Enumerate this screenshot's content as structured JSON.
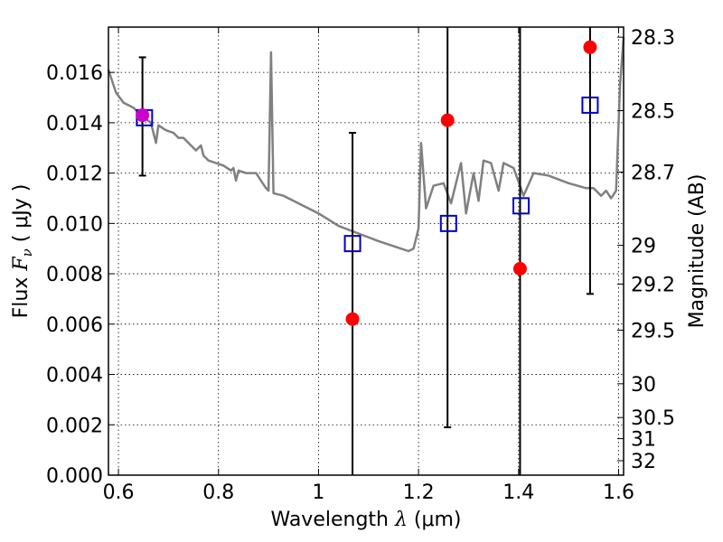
{
  "chart_data": {
    "type": "scatter",
    "xlabel": "Wavelength  λ (μm)",
    "ylabel": "Flux  Fν  ( μJy )",
    "ylabel_parts": {
      "pre": "Flux  ",
      "symbol": "F",
      "sub": "ν",
      "post": "  ( μJy )"
    },
    "xlabel_parts": {
      "pre": "Wavelength  ",
      "symbol": "λ",
      "post": " (μm)"
    },
    "y2label": "Magnitude (AB)",
    "xlim": [
      0.58,
      1.61
    ],
    "ylim": [
      0.0,
      0.0178
    ],
    "x_ticks": [
      0.6,
      0.8,
      1.0,
      1.2,
      1.4,
      1.6
    ],
    "x_tick_labels": [
      "0.6",
      "0.8",
      "1",
      "1.2",
      "1.4",
      "1.6"
    ],
    "y_ticks": [
      0.0,
      0.002,
      0.004,
      0.006,
      0.008,
      0.01,
      0.012,
      0.014,
      0.016
    ],
    "y_tick_labels": [
      "0.000",
      "0.002",
      "0.004",
      "0.006",
      "0.008",
      "0.010",
      "0.012",
      "0.014",
      "0.016"
    ],
    "y2_ticks": [
      {
        "label": "28.3",
        "flux": 0.0174
      },
      {
        "label": "28.5",
        "flux": 0.01448
      },
      {
        "label": "28.7",
        "flux": 0.01204
      },
      {
        "label": "29",
        "flux": 0.00913
      },
      {
        "label": "29.2",
        "flux": 0.00759
      },
      {
        "label": "29.5",
        "flux": 0.00576
      },
      {
        "label": "30",
        "flux": 0.00363
      },
      {
        "label": "30.5",
        "flux": 0.00229
      },
      {
        "label": "31",
        "flux": 0.00145
      },
      {
        "label": "32",
        "flux": 0.000575
      }
    ],
    "grid": true,
    "colors": {
      "model": "#808080",
      "observed": "#ff0000",
      "model_bands": "#0000cc",
      "error": "#000000",
      "overlap": "#cc00cc"
    },
    "series": [
      {
        "style": "line",
        "points": [
          [
            0.58,
            0.0161
          ],
          [
            0.595,
            0.0152
          ],
          [
            0.61,
            0.0148
          ],
          [
            0.63,
            0.0146
          ],
          [
            0.645,
            0.0143
          ],
          [
            0.665,
            0.014
          ],
          [
            0.675,
            0.0132
          ],
          [
            0.68,
            0.0139
          ],
          [
            0.695,
            0.0137
          ],
          [
            0.71,
            0.0136
          ],
          [
            0.72,
            0.0134
          ],
          [
            0.73,
            0.0134
          ],
          [
            0.745,
            0.0131
          ],
          [
            0.755,
            0.0129
          ],
          [
            0.765,
            0.0131
          ],
          [
            0.77,
            0.0127
          ],
          [
            0.78,
            0.0125
          ],
          [
            0.795,
            0.0124
          ],
          [
            0.81,
            0.0123
          ],
          [
            0.825,
            0.0121
          ],
          [
            0.83,
            0.0122
          ],
          [
            0.835,
            0.0117
          ],
          [
            0.84,
            0.0121
          ],
          [
            0.855,
            0.012
          ],
          [
            0.875,
            0.012
          ],
          [
            0.885,
            0.0117
          ],
          [
            0.895,
            0.0114
          ],
          [
            0.9,
            0.0113
          ],
          [
            0.905,
            0.0168
          ],
          [
            0.91,
            0.0112
          ],
          [
            0.93,
            0.0111
          ],
          [
            0.96,
            0.0108
          ],
          [
            1.0,
            0.0104
          ],
          [
            1.04,
            0.0099
          ],
          [
            1.08,
            0.0096
          ],
          [
            1.12,
            0.0093
          ],
          [
            1.15,
            0.0091
          ],
          [
            1.18,
            0.0089
          ],
          [
            1.19,
            0.009
          ],
          [
            1.2,
            0.0098
          ],
          [
            1.205,
            0.0132
          ],
          [
            1.215,
            0.0106
          ],
          [
            1.23,
            0.0115
          ],
          [
            1.25,
            0.0116
          ],
          [
            1.265,
            0.0108
          ],
          [
            1.285,
            0.0124
          ],
          [
            1.295,
            0.0104
          ],
          [
            1.31,
            0.012
          ],
          [
            1.32,
            0.0109
          ],
          [
            1.33,
            0.0125
          ],
          [
            1.345,
            0.0124
          ],
          [
            1.36,
            0.0113
          ],
          [
            1.37,
            0.0124
          ],
          [
            1.39,
            0.0122
          ],
          [
            1.41,
            0.0111
          ],
          [
            1.43,
            0.012
          ],
          [
            1.46,
            0.0119
          ],
          [
            1.5,
            0.0116
          ],
          [
            1.535,
            0.0114
          ],
          [
            1.55,
            0.0114
          ],
          [
            1.565,
            0.0111
          ],
          [
            1.575,
            0.0113
          ],
          [
            1.585,
            0.011
          ],
          [
            1.595,
            0.0113
          ],
          [
            1.603,
            0.0155
          ],
          [
            1.61,
            0.0174
          ]
        ]
      },
      {
        "style": "filled-circle",
        "points": [
          {
            "x": 0.648,
            "y": 0.0143,
            "yerr_low": 0.0119,
            "yerr_high": 0.0166
          },
          {
            "x": 1.068,
            "y": 0.0062,
            "yerr_low": 0.0,
            "yerr_high": 0.0136
          },
          {
            "x": 1.258,
            "y": 0.0141,
            "yerr_low": 0.0019,
            "yerr_high": 0.0178
          },
          {
            "x": 1.403,
            "y": 0.0082,
            "yerr_low": 0.0,
            "yerr_high": 0.0178
          },
          {
            "x": 1.543,
            "y": 0.017,
            "yerr_low": 0.0072,
            "yerr_high": 0.0178
          }
        ]
      },
      {
        "style": "open-square",
        "points": [
          [
            0.652,
            0.0142
          ],
          [
            1.068,
            0.0092
          ],
          [
            1.26,
            0.01
          ],
          [
            1.405,
            0.0107
          ],
          [
            1.543,
            0.0147
          ]
        ]
      }
    ]
  }
}
